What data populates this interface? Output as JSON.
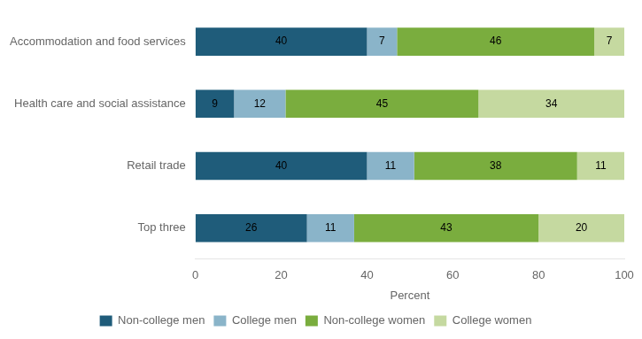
{
  "chart_data": {
    "type": "bar",
    "orientation": "horizontal",
    "stacked": true,
    "xlabel": "Percent",
    "categories": [
      "Top three",
      "Retail trade",
      "Health care and social assistance",
      "Accommodation and food services"
    ],
    "series": [
      {
        "name": "Non-college men",
        "color": "#1f5c7a",
        "values": [
          26,
          40,
          9,
          40
        ]
      },
      {
        "name": "College men",
        "color": "#8ab4c9",
        "values": [
          11,
          11,
          12,
          7
        ]
      },
      {
        "name": "Non-college women",
        "color": "#7aad3e",
        "values": [
          43,
          38,
          45,
          46
        ]
      },
      {
        "name": "College women",
        "color": "#c5d9a0",
        "values": [
          20,
          11,
          34,
          7
        ]
      }
    ],
    "xlim": [
      0,
      100
    ],
    "xticks": [
      0,
      20,
      40,
      60,
      80,
      100
    ],
    "grid": false,
    "legend": "bottom",
    "data_labels": true
  }
}
